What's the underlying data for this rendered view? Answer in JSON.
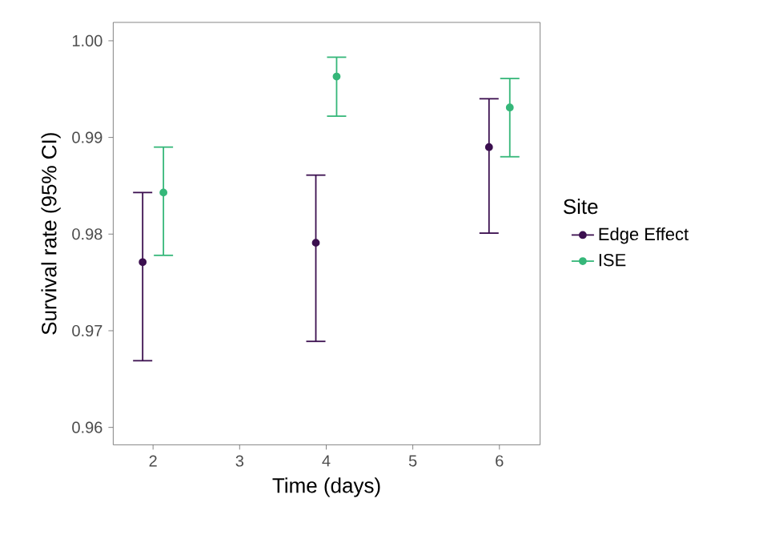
{
  "chart_data": {
    "type": "scatter",
    "xlabel": "Time (days)",
    "ylabel": "Survival rate (95% CI)",
    "legend_title": "Site",
    "legend": "right",
    "marker": "circle",
    "grid": false,
    "xlim": [
      1.54,
      6.47
    ],
    "xticks": [
      2,
      3,
      4,
      5,
      6
    ],
    "ylim": [
      0.9582,
      1.0019
    ],
    "yticks": [
      0.96,
      0.97,
      0.98,
      0.99,
      {
        "value": 1.0,
        "label": "1.00"
      }
    ],
    "series": [
      {
        "name": "Edge Effect",
        "color": "#3b0f4f",
        "x": [
          1.88,
          3.88,
          5.88
        ],
        "values": [
          0.9771,
          0.9791,
          0.989
        ],
        "errors": [
          [
            0.9669,
            0.9843
          ],
          [
            0.9689,
            0.9861
          ],
          [
            0.9801,
            0.994
          ]
        ]
      },
      {
        "name": "ISE",
        "color": "#35b779",
        "x": [
          2.12,
          4.12,
          6.12
        ],
        "values": [
          0.9843,
          0.9963,
          0.9931
        ],
        "errors": [
          [
            0.9778,
            0.989
          ],
          [
            0.9922,
            0.9983
          ],
          [
            0.988,
            0.9961
          ]
        ]
      }
    ]
  }
}
